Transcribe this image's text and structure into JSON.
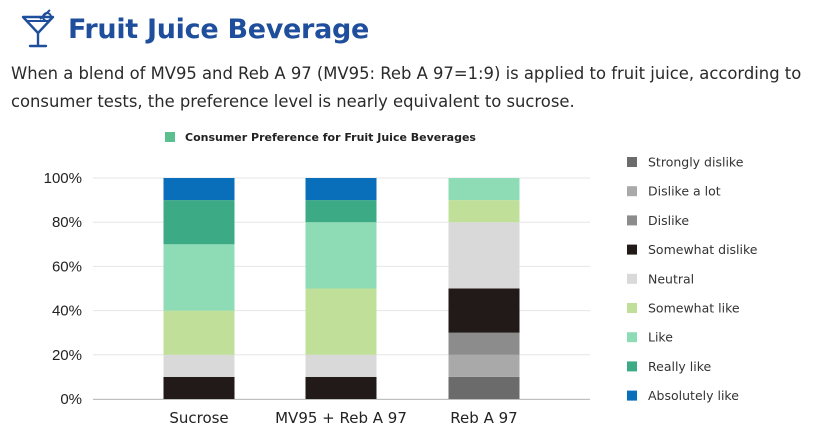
{
  "header": {
    "title": "Fruit Juice Beverage",
    "icon": "cocktail-glass-icon",
    "title_color": "#1f4f9c"
  },
  "description": "When a blend of MV95 and Reb A 97 (MV95: Reb A 97=1:9) is applied to fruit juice, according to consumer tests, the preference level is nearly equivalent to sucrose.",
  "chart_data": {
    "type": "bar",
    "stacked": true,
    "title": "Consumer Preference for Fruit Juice Beverages",
    "title_marker_color": "#5cbf8f",
    "categories": [
      "Sucrose",
      "MV95 + Reb A 97",
      "Reb A 97"
    ],
    "ylim": [
      0,
      100
    ],
    "yticks": [
      "0%",
      "20%",
      "40%",
      "60%",
      "80%",
      "100%"
    ],
    "grid": true,
    "legend_position": "right",
    "series": [
      {
        "name": "Strongly dislike",
        "color": "#6b6b6b",
        "values": [
          0,
          0,
          10
        ]
      },
      {
        "name": "Dislike a lot",
        "color": "#a9a9a9",
        "values": [
          0,
          0,
          10
        ]
      },
      {
        "name": "Dislike",
        "color": "#8c8c8c",
        "values": [
          0,
          0,
          10
        ]
      },
      {
        "name": "Somewhat dislike",
        "color": "#211a18",
        "values": [
          10,
          10,
          20
        ]
      },
      {
        "name": "Neutral",
        "color": "#d9d9d9",
        "values": [
          10,
          10,
          30
        ]
      },
      {
        "name": "Somewhat like",
        "color": "#c0e09a",
        "values": [
          20,
          30,
          10
        ]
      },
      {
        "name": "Like",
        "color": "#8ddcb5",
        "values": [
          30,
          30,
          10
        ]
      },
      {
        "name": "Really like",
        "color": "#3daa86",
        "values": [
          20,
          10,
          0
        ]
      },
      {
        "name": "Absolutely like",
        "color": "#0a6fba",
        "values": [
          10,
          10,
          0
        ]
      }
    ]
  }
}
